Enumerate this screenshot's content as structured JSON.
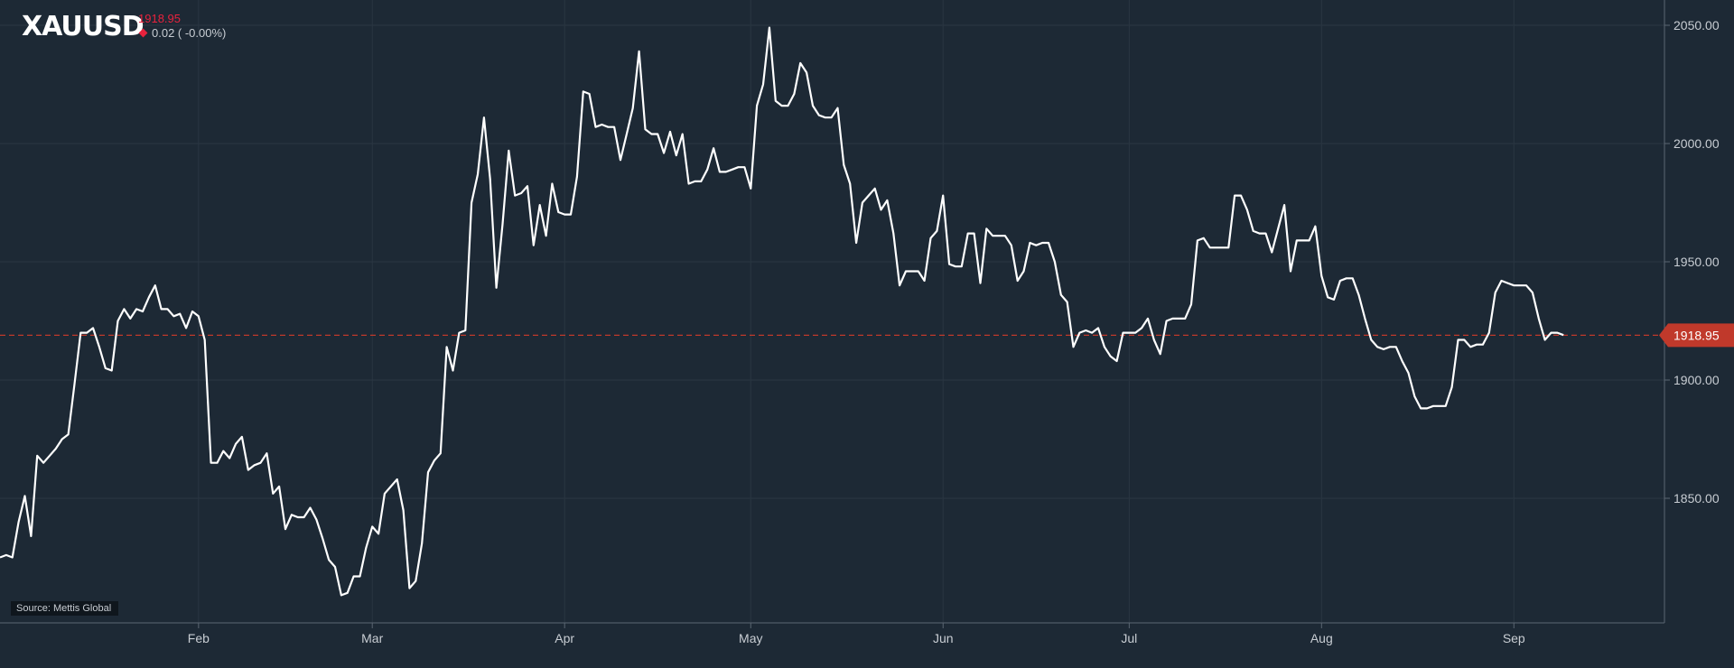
{
  "header": {
    "symbol": "XAUUSD",
    "last_price": "1918.95",
    "change_text": "0.02 ( -0.00%)"
  },
  "source_label": "Source: Mettis Global",
  "colors": {
    "background": "#1d2935",
    "line": "#ffffff",
    "grid": "#2a3642",
    "axis": "#5b6672",
    "price_line": "#c0392b",
    "price_tag": "#c0392b",
    "negative": "#e8223d"
  },
  "chart_data": {
    "type": "line",
    "title": "XAUUSD",
    "xlabel": "",
    "ylabel": "",
    "ylim": [
      1800,
      2065
    ],
    "y_ticks": [
      {
        "value": 1850,
        "label": "1850.00"
      },
      {
        "value": 1900,
        "label": "1900.00"
      },
      {
        "value": 1950,
        "label": "1950.00"
      },
      {
        "value": 2000,
        "label": "2000.00"
      },
      {
        "value": 2050,
        "label": "2050.00"
      }
    ],
    "x_ticks": [
      {
        "day": 32,
        "label": "Feb"
      },
      {
        "day": 60,
        "label": "Mar"
      },
      {
        "day": 91,
        "label": "Apr"
      },
      {
        "day": 121,
        "label": "May"
      },
      {
        "day": 152,
        "label": "Jun"
      },
      {
        "day": 182,
        "label": "Jul"
      },
      {
        "day": 213,
        "label": "Aug"
      },
      {
        "day": 244,
        "label": "Sep"
      }
    ],
    "x_range": [
      0,
      268
    ],
    "current_price": 1918.95,
    "current_price_label": "1918.95",
    "grid": true,
    "series": [
      {
        "values": [
          [
            0,
            1825
          ],
          [
            1,
            1826
          ],
          [
            2,
            1825
          ],
          [
            3,
            1840
          ],
          [
            4,
            1851
          ],
          [
            5,
            1834
          ],
          [
            6,
            1868
          ],
          [
            7,
            1865
          ],
          [
            8,
            1868
          ],
          [
            9,
            1871
          ],
          [
            10,
            1875
          ],
          [
            11,
            1877
          ],
          [
            12,
            1898
          ],
          [
            13,
            1920
          ],
          [
            14,
            1920
          ],
          [
            15,
            1922
          ],
          [
            16,
            1914
          ],
          [
            17,
            1905
          ],
          [
            18,
            1904
          ],
          [
            19,
            1925
          ],
          [
            20,
            1930
          ],
          [
            21,
            1926
          ],
          [
            22,
            1930
          ],
          [
            23,
            1929
          ],
          [
            24,
            1935
          ],
          [
            25,
            1940
          ],
          [
            26,
            1930
          ],
          [
            27,
            1930
          ],
          [
            28,
            1927
          ],
          [
            29,
            1928
          ],
          [
            30,
            1922
          ],
          [
            31,
            1929
          ],
          [
            32,
            1927
          ],
          [
            33,
            1917
          ],
          [
            34,
            1865
          ],
          [
            35,
            1865
          ],
          [
            36,
            1870
          ],
          [
            37,
            1867
          ],
          [
            38,
            1873
          ],
          [
            39,
            1876
          ],
          [
            40,
            1862
          ],
          [
            41,
            1864
          ],
          [
            42,
            1865
          ],
          [
            43,
            1869
          ],
          [
            44,
            1852
          ],
          [
            45,
            1855
          ],
          [
            46,
            1837
          ],
          [
            47,
            1843
          ],
          [
            48,
            1842
          ],
          [
            49,
            1842
          ],
          [
            50,
            1846
          ],
          [
            51,
            1841
          ],
          [
            52,
            1833
          ],
          [
            53,
            1824
          ],
          [
            54,
            1821
          ],
          [
            55,
            1809
          ],
          [
            56,
            1810
          ],
          [
            57,
            1817
          ],
          [
            58,
            1817
          ],
          [
            59,
            1829
          ],
          [
            60,
            1838
          ],
          [
            61,
            1835
          ],
          [
            62,
            1852
          ],
          [
            63,
            1855
          ],
          [
            64,
            1858
          ],
          [
            65,
            1845
          ],
          [
            66,
            1812
          ],
          [
            67,
            1815
          ],
          [
            68,
            1831
          ],
          [
            69,
            1861
          ],
          [
            70,
            1866
          ],
          [
            71,
            1869
          ],
          [
            72,
            1914
          ],
          [
            73,
            1904
          ],
          [
            74,
            1920
          ],
          [
            75,
            1921
          ],
          [
            76,
            1975
          ],
          [
            77,
            1987
          ],
          [
            78,
            2011
          ],
          [
            79,
            1985
          ],
          [
            80,
            1939
          ],
          [
            81,
            1966
          ],
          [
            82,
            1997
          ],
          [
            83,
            1978
          ],
          [
            84,
            1979
          ],
          [
            85,
            1982
          ],
          [
            86,
            1957
          ],
          [
            87,
            1974
          ],
          [
            88,
            1961
          ],
          [
            89,
            1983
          ],
          [
            90,
            1971
          ],
          [
            91,
            1970
          ],
          [
            92,
            1970
          ],
          [
            93,
            1986
          ],
          [
            94,
            2022
          ],
          [
            95,
            2021
          ],
          [
            96,
            2007
          ],
          [
            97,
            2008
          ],
          [
            98,
            2007
          ],
          [
            99,
            2007
          ],
          [
            100,
            1993
          ],
          [
            101,
            2004
          ],
          [
            102,
            2015
          ],
          [
            103,
            2039
          ],
          [
            104,
            2006
          ],
          [
            105,
            2004
          ],
          [
            106,
            2004
          ],
          [
            107,
            1996
          ],
          [
            108,
            2005
          ],
          [
            109,
            1995
          ],
          [
            110,
            2004
          ],
          [
            111,
            1983
          ],
          [
            112,
            1984
          ],
          [
            113,
            1984
          ],
          [
            114,
            1989
          ],
          [
            115,
            1998
          ],
          [
            116,
            1988
          ],
          [
            117,
            1988
          ],
          [
            118,
            1989
          ],
          [
            119,
            1990
          ],
          [
            120,
            1990
          ],
          [
            121,
            1981
          ],
          [
            122,
            2016
          ],
          [
            123,
            2025
          ],
          [
            124,
            2049
          ],
          [
            125,
            2018
          ],
          [
            126,
            2016
          ],
          [
            127,
            2016
          ],
          [
            128,
            2021
          ],
          [
            129,
            2034
          ],
          [
            130,
            2030
          ],
          [
            131,
            2016
          ],
          [
            132,
            2012
          ],
          [
            133,
            2011
          ],
          [
            134,
            2011
          ],
          [
            135,
            2015
          ],
          [
            136,
            1991
          ],
          [
            137,
            1983
          ],
          [
            138,
            1958
          ],
          [
            139,
            1975
          ],
          [
            140,
            1978
          ],
          [
            141,
            1981
          ],
          [
            142,
            1972
          ],
          [
            143,
            1976
          ],
          [
            144,
            1962
          ],
          [
            145,
            1940
          ],
          [
            146,
            1946
          ],
          [
            147,
            1946
          ],
          [
            148,
            1946
          ],
          [
            149,
            1942
          ],
          [
            150,
            1960
          ],
          [
            151,
            1963
          ],
          [
            152,
            1978
          ],
          [
            153,
            1949
          ],
          [
            154,
            1948
          ],
          [
            155,
            1948
          ],
          [
            156,
            1962
          ],
          [
            157,
            1962
          ],
          [
            158,
            1941
          ],
          [
            159,
            1964
          ],
          [
            160,
            1961
          ],
          [
            161,
            1961
          ],
          [
            162,
            1961
          ],
          [
            163,
            1957
          ],
          [
            164,
            1942
          ],
          [
            165,
            1946
          ],
          [
            166,
            1958
          ],
          [
            167,
            1957
          ],
          [
            168,
            1958
          ],
          [
            169,
            1958
          ],
          [
            170,
            1950
          ],
          [
            171,
            1936
          ],
          [
            172,
            1933
          ],
          [
            173,
            1914
          ],
          [
            174,
            1920
          ],
          [
            175,
            1921
          ],
          [
            176,
            1920
          ],
          [
            177,
            1922
          ],
          [
            178,
            1914
          ],
          [
            179,
            1910
          ],
          [
            180,
            1908
          ],
          [
            181,
            1920
          ],
          [
            182,
            1920
          ],
          [
            183,
            1920
          ],
          [
            184,
            1922
          ],
          [
            185,
            1926
          ],
          [
            186,
            1917
          ],
          [
            187,
            1911
          ],
          [
            188,
            1925
          ],
          [
            189,
            1926
          ],
          [
            190,
            1926
          ],
          [
            191,
            1926
          ],
          [
            192,
            1932
          ],
          [
            193,
            1959
          ],
          [
            194,
            1960
          ],
          [
            195,
            1956
          ],
          [
            196,
            1956
          ],
          [
            197,
            1956
          ],
          [
            198,
            1956
          ],
          [
            199,
            1978
          ],
          [
            200,
            1978
          ],
          [
            201,
            1972
          ],
          [
            202,
            1963
          ],
          [
            203,
            1962
          ],
          [
            204,
            1962
          ],
          [
            205,
            1954
          ],
          [
            206,
            1964
          ],
          [
            207,
            1974
          ],
          [
            208,
            1946
          ],
          [
            209,
            1959
          ],
          [
            210,
            1959
          ],
          [
            211,
            1959
          ],
          [
            212,
            1965
          ],
          [
            213,
            1944
          ],
          [
            214,
            1935
          ],
          [
            215,
            1934
          ],
          [
            216,
            1942
          ],
          [
            217,
            1943
          ],
          [
            218,
            1943
          ],
          [
            219,
            1936
          ],
          [
            220,
            1926
          ],
          [
            221,
            1917
          ],
          [
            222,
            1914
          ],
          [
            223,
            1913
          ],
          [
            224,
            1914
          ],
          [
            225,
            1914
          ],
          [
            226,
            1908
          ],
          [
            227,
            1903
          ],
          [
            228,
            1893
          ],
          [
            229,
            1888
          ],
          [
            230,
            1888
          ],
          [
            231,
            1889
          ],
          [
            232,
            1889
          ],
          [
            233,
            1889
          ],
          [
            234,
            1897
          ],
          [
            235,
            1917
          ],
          [
            236,
            1917
          ],
          [
            237,
            1914
          ],
          [
            238,
            1915
          ],
          [
            239,
            1915
          ],
          [
            240,
            1920
          ],
          [
            241,
            1937
          ],
          [
            242,
            1942
          ],
          [
            243,
            1941
          ],
          [
            244,
            1940
          ],
          [
            245,
            1940
          ],
          [
            246,
            1940
          ],
          [
            247,
            1937
          ],
          [
            248,
            1926
          ],
          [
            249,
            1917
          ],
          [
            250,
            1920
          ],
          [
            251,
            1920
          ],
          [
            252,
            1919
          ]
        ]
      }
    ]
  }
}
